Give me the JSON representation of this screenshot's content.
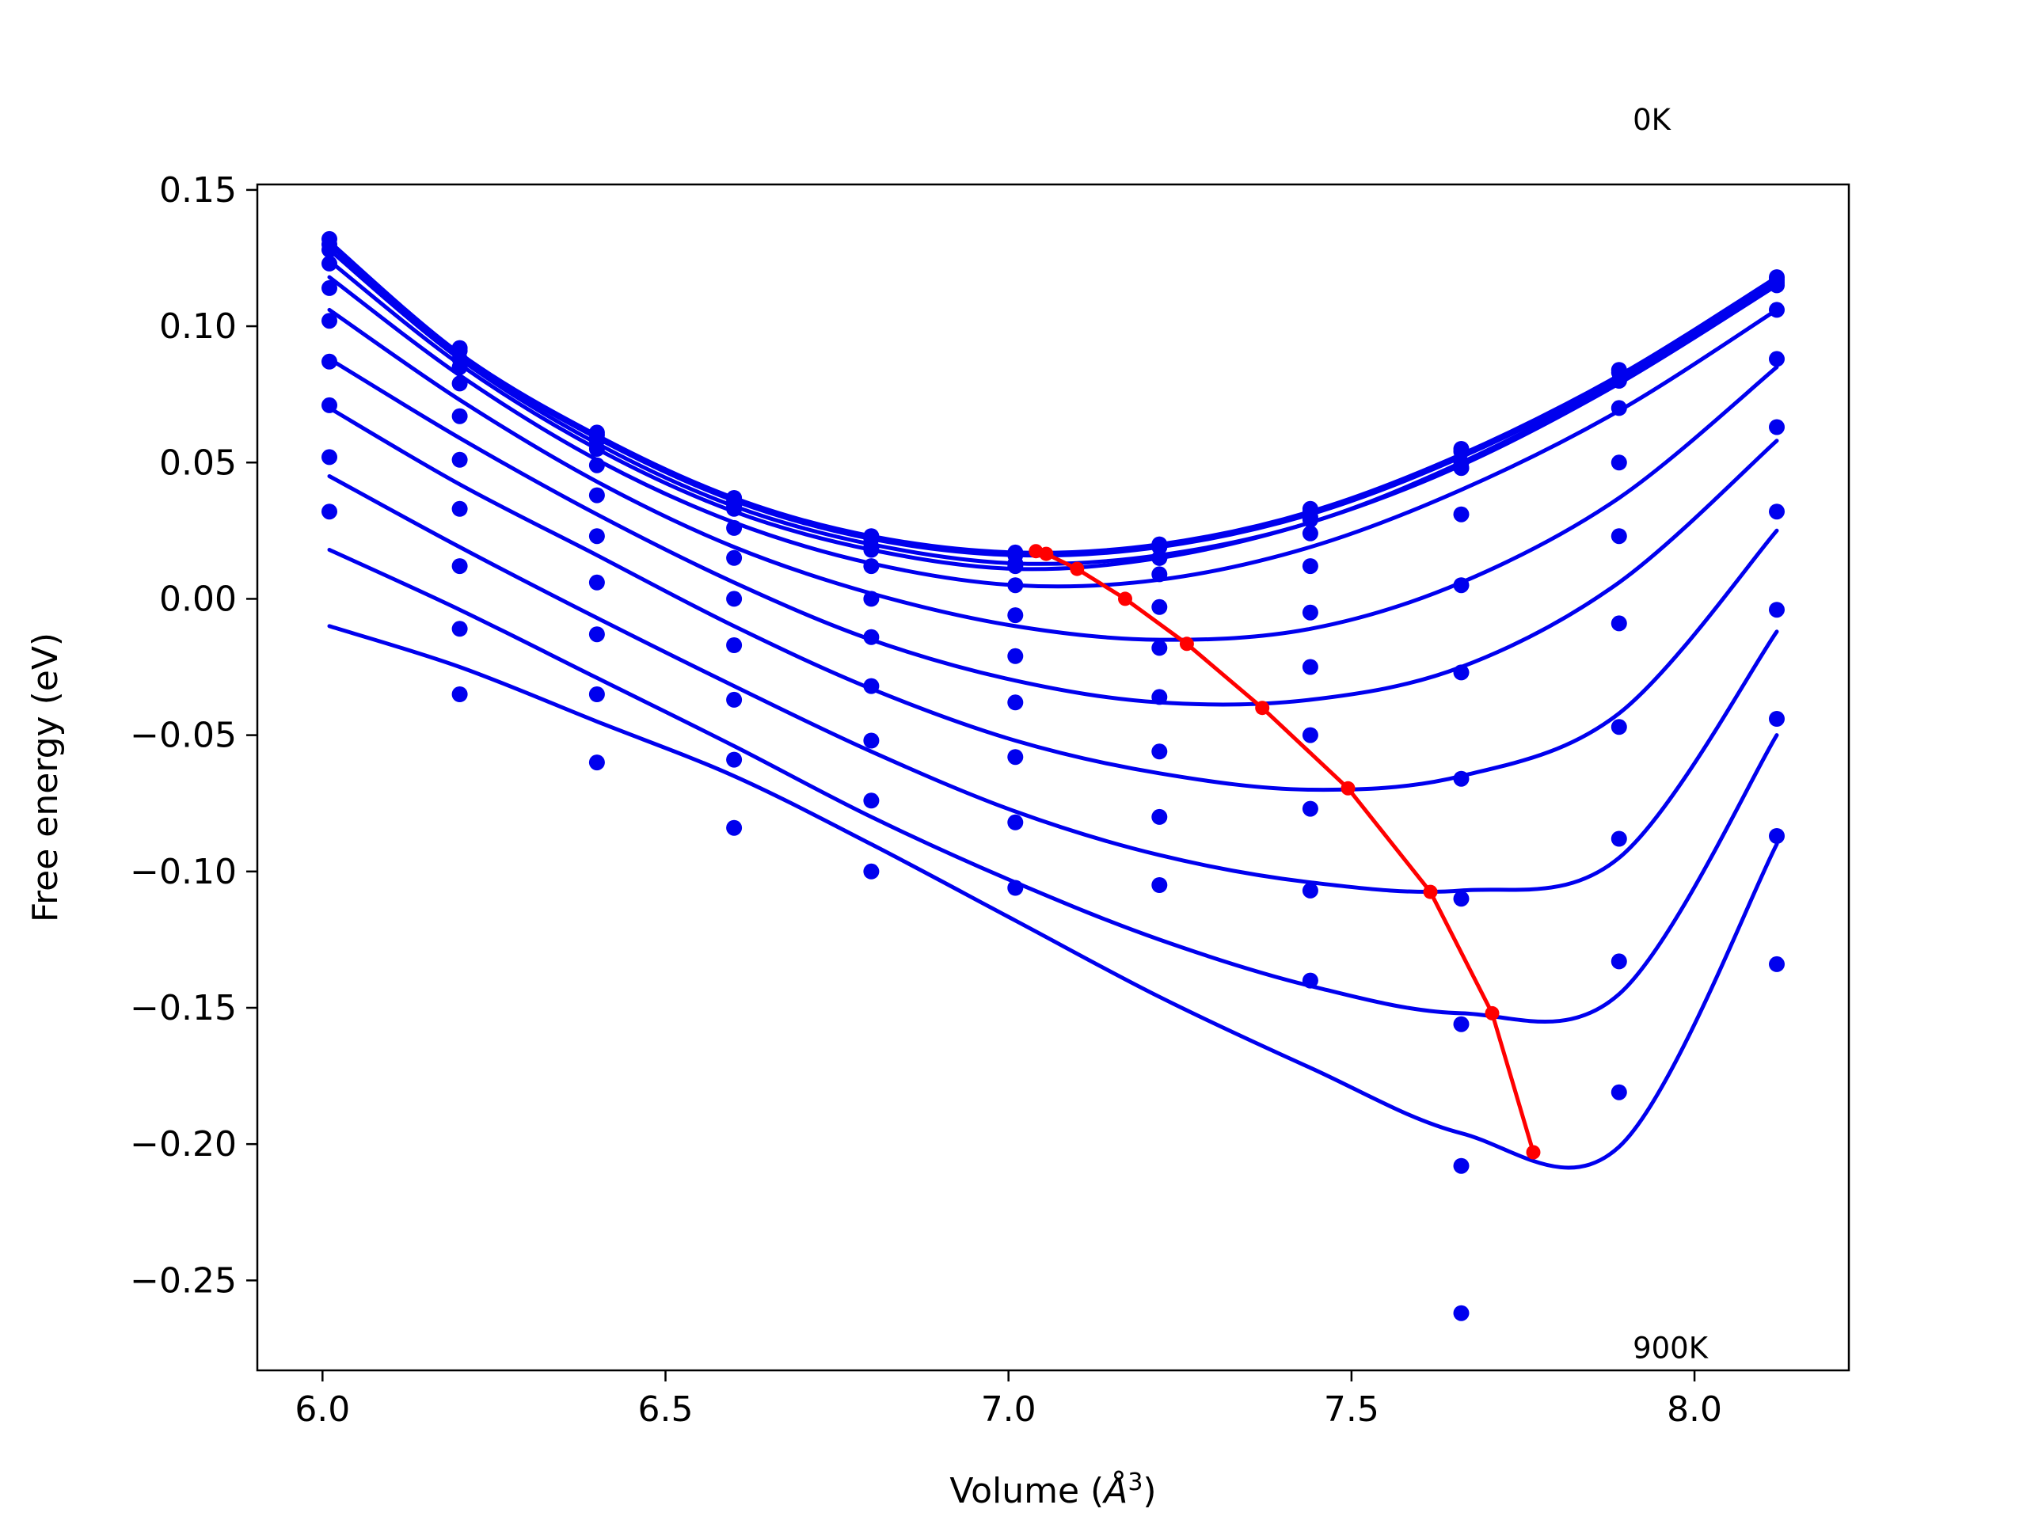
{
  "chart_data": {
    "type": "line",
    "title": "",
    "xlabel": "Volume (Å³)",
    "xlabel_main": "Volume (",
    "xlabel_unit": "Å",
    "xlabel_exp": "3",
    "xlabel_close": ")",
    "ylabel": "Free energy (eV)",
    "xlim": [
      5.905,
      8.225
    ],
    "ylim": [
      -0.283,
      0.152
    ],
    "xticks": [
      6.0,
      6.5,
      7.0,
      7.5,
      8.0
    ],
    "xtick_labels": [
      "6.0",
      "6.5",
      "7.0",
      "7.5",
      "8.0"
    ],
    "yticks": [
      0.15,
      0.1,
      0.05,
      0.0,
      -0.05,
      -0.1,
      -0.15,
      -0.2,
      -0.25
    ],
    "ytick_labels": [
      "0.15",
      "0.10",
      "0.05",
      "0.00",
      "−0.05",
      "−0.10",
      "−0.15",
      "−0.20",
      "−0.25"
    ],
    "grid": false,
    "annotations": [
      {
        "text": "0K",
        "x": 7.91,
        "y": 0.172
      },
      {
        "text": "900K",
        "x": 7.91,
        "y": -0.2785
      }
    ],
    "volumes": [
      6.01,
      6.2,
      6.4,
      6.6,
      6.8,
      7.01,
      7.22,
      7.44,
      7.66,
      7.89,
      8.12
    ],
    "colors": {
      "fit": "#0000ee",
      "points": "#0000ee",
      "min_path": "#ff0000"
    },
    "series": [
      {
        "values": [
          0.132,
          0.092,
          0.061,
          0.037,
          0.023,
          0.017,
          0.02,
          0.033,
          0.055,
          0.084,
          0.118
        ],
        "fit": [
          0.131,
          0.09,
          0.06,
          0.037,
          0.023,
          0.017,
          0.02,
          0.032,
          0.053,
          0.082,
          0.118
        ]
      },
      {
        "values": [
          0.13,
          0.091,
          0.06,
          0.036,
          0.022,
          0.016,
          0.019,
          0.032,
          0.054,
          0.083,
          0.117
        ],
        "fit": [
          0.13,
          0.089,
          0.059,
          0.036,
          0.022,
          0.016,
          0.019,
          0.031,
          0.052,
          0.081,
          0.117
        ]
      },
      {
        "values": [
          0.128,
          0.088,
          0.058,
          0.034,
          0.019,
          0.013,
          0.015,
          0.03,
          0.05,
          0.08,
          0.116
        ],
        "fit": [
          0.128,
          0.088,
          0.057,
          0.034,
          0.02,
          0.013,
          0.016,
          0.028,
          0.05,
          0.08,
          0.116
        ]
      },
      {
        "values": [
          0.123,
          0.085,
          0.055,
          0.033,
          0.018,
          0.012,
          0.015,
          0.029,
          0.048,
          0.08,
          0.115
        ],
        "fit": [
          0.124,
          0.086,
          0.055,
          0.032,
          0.018,
          0.011,
          0.015,
          0.028,
          0.049,
          0.079,
          0.115
        ]
      },
      {
        "values": [
          0.114,
          0.079,
          0.049,
          0.026,
          0.012,
          0.005,
          0.009,
          0.024,
          0.048,
          0.07,
          0.106
        ],
        "fit": [
          0.118,
          0.082,
          0.051,
          0.028,
          0.013,
          0.005,
          0.007,
          0.019,
          0.04,
          0.069,
          0.106
        ]
      },
      {
        "values": [
          0.102,
          0.067,
          0.038,
          0.015,
          0.0,
          -0.006,
          -0.003,
          0.012,
          0.031,
          0.05,
          0.088
        ],
        "fit": [
          0.106,
          0.073,
          0.043,
          0.019,
          0.002,
          -0.01,
          -0.015,
          -0.011,
          0.006,
          0.037,
          0.085
        ]
      },
      {
        "values": [
          0.087,
          0.051,
          0.023,
          0.0,
          -0.014,
          -0.021,
          -0.018,
          -0.005,
          0.005,
          0.023,
          0.063
        ],
        "fit": [
          0.088,
          0.059,
          0.031,
          0.006,
          -0.015,
          -0.03,
          -0.038,
          -0.037,
          -0.025,
          0.006,
          0.058
        ]
      },
      {
        "values": [
          0.071,
          0.033,
          0.006,
          -0.017,
          -0.032,
          -0.038,
          -0.036,
          -0.025,
          -0.027,
          -0.009,
          0.032
        ],
        "fit": [
          0.07,
          0.042,
          0.016,
          -0.01,
          -0.033,
          -0.052,
          -0.064,
          -0.07,
          -0.065,
          -0.042,
          0.025
        ]
      },
      {
        "values": [
          0.052,
          0.012,
          -0.013,
          -0.037,
          -0.052,
          -0.058,
          -0.056,
          -0.05,
          -0.066,
          -0.047,
          -0.004
        ],
        "fit": [
          0.045,
          0.019,
          -0.007,
          -0.032,
          -0.056,
          -0.078,
          -0.094,
          -0.104,
          -0.107,
          -0.095,
          -0.012
        ]
      },
      {
        "values": [
          0.032,
          -0.011,
          -0.035,
          -0.059,
          -0.074,
          -0.082,
          -0.08,
          -0.077,
          -0.11,
          -0.088,
          -0.044
        ],
        "fit": [
          0.018,
          -0.004,
          -0.029,
          -0.054,
          -0.08,
          -0.104,
          -0.125,
          -0.142,
          -0.152,
          -0.145,
          -0.05
        ]
      },
      {
        "values": [
          null,
          -0.035,
          -0.06,
          -0.084,
          -0.1,
          -0.106,
          -0.105,
          -0.14,
          -0.156,
          -0.133,
          -0.087
        ],
        "fit": [
          -0.01,
          -0.025,
          -0.045,
          -0.065,
          -0.09,
          -0.118,
          -0.146,
          -0.172,
          -0.196,
          -0.201,
          -0.09
        ]
      },
      {
        "values": [
          null,
          null,
          null,
          null,
          null,
          null,
          null,
          -0.107,
          -0.208,
          -0.181,
          -0.134
        ],
        "fit": [
          null,
          null,
          null,
          null,
          null,
          null,
          null,
          null,
          null,
          null,
          -0.135
        ]
      },
      {
        "values": [
          null,
          null,
          null,
          null,
          null,
          null,
          null,
          null,
          -0.262,
          null,
          null
        ],
        "fit": null
      }
    ],
    "min_path": {
      "x": [
        7.04,
        7.055,
        7.1,
        7.17,
        7.26,
        7.37,
        7.495,
        7.615,
        7.705,
        7.765
      ],
      "y": [
        0.0175,
        0.0165,
        0.011,
        0.0,
        -0.0165,
        -0.04,
        -0.0695,
        -0.1075,
        -0.152,
        -0.203
      ]
    }
  }
}
